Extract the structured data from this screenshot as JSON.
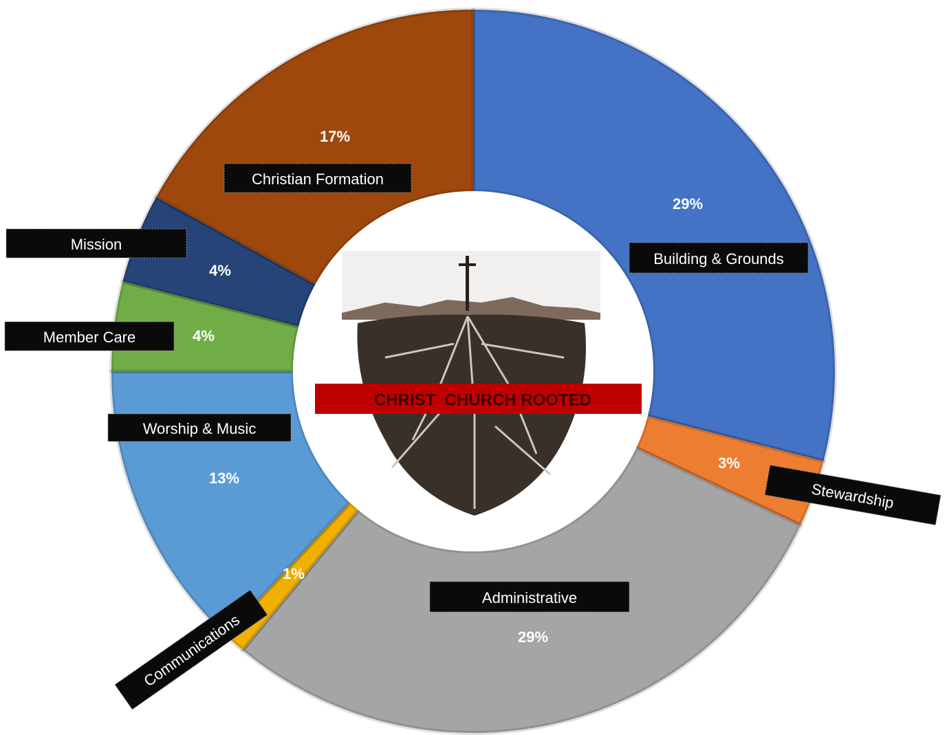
{
  "chart_data": {
    "type": "donut",
    "categories": [
      "Building & Grounds",
      "Stewardship",
      "Administrative",
      "Communications",
      "Worship & Music",
      "Member Care",
      "Mission",
      "Christian Formation"
    ],
    "values": [
      29,
      3,
      29,
      1,
      13,
      4,
      4,
      17
    ],
    "value_labels": [
      "29%",
      "3%",
      "29%",
      "1%",
      "13%",
      "4%",
      "4%",
      "17%"
    ],
    "colors": [
      "#4472c4",
      "#ed7d31",
      "#a5a5a5",
      "#f0b000",
      "#5b9bd5",
      "#70ad47",
      "#264478",
      "#9e480e"
    ],
    "annotation": "CHRIST  CHURCH ROOTED"
  }
}
